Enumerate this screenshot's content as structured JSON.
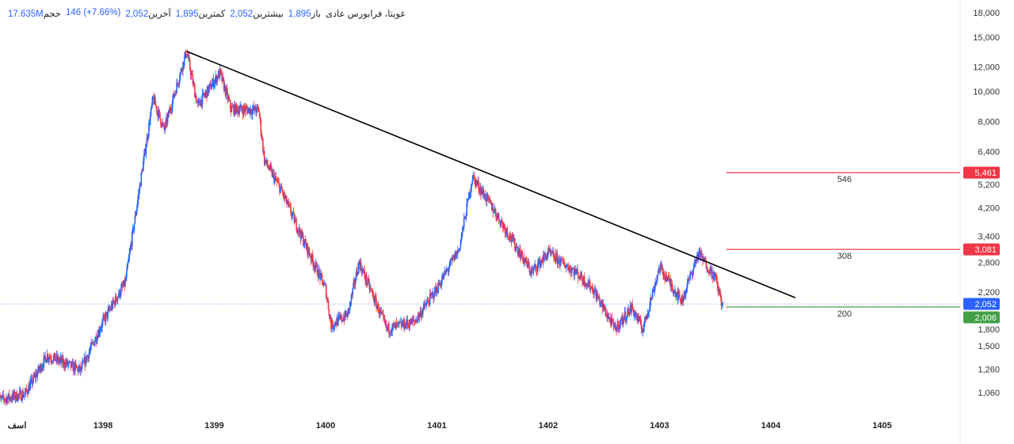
{
  "header": {
    "symbol": "غویتا، فرابورس عادی",
    "open_label": "باز",
    "open": "1,895",
    "high_label": "بیشترین",
    "high": "2,052",
    "low_label": "کمترین",
    "low": "1,895",
    "close_label": "آخرین",
    "close": "2,052",
    "change": "146 (+7.66%)",
    "volume_label": "حجم",
    "volume": "17.635M"
  },
  "chart_data": {
    "type": "candlestick",
    "y_scale": "log",
    "ylim": [
      900,
      18500
    ],
    "y_ticks": [
      "18,000",
      "15,000",
      "12,000",
      "10,000",
      "8,000",
      "6,400",
      "5,200",
      "4,200",
      "3,400",
      "2,800",
      "2,200",
      "1,800",
      "1,500",
      "1,260",
      "1,060"
    ],
    "y_tick_values": [
      18000,
      15000,
      12000,
      10000,
      8000,
      6400,
      5200,
      4200,
      3400,
      2800,
      2200,
      1800,
      1500,
      1260,
      1060
    ],
    "x_ticks": [
      "اسف",
      "1398",
      "1399",
      "1400",
      "1401",
      "1402",
      "1403",
      "1404",
      "1405"
    ],
    "x_tick_values": [
      1397.2,
      1398,
      1399,
      1400,
      1401,
      1402,
      1403,
      1404,
      1405
    ],
    "xlim": [
      1397.05,
      1406.2
    ],
    "price_path": [
      [
        1397.05,
        1000
      ],
      [
        1397.3,
        1050
      ],
      [
        1397.5,
        1400
      ],
      [
        1397.8,
        1250
      ],
      [
        1398.0,
        1800
      ],
      [
        1398.2,
        2400
      ],
      [
        1398.35,
        5500
      ],
      [
        1398.45,
        9500
      ],
      [
        1398.55,
        7500
      ],
      [
        1398.75,
        13500
      ],
      [
        1398.85,
        9000
      ],
      [
        1399.05,
        11500
      ],
      [
        1399.15,
        8800
      ],
      [
        1399.4,
        8700
      ],
      [
        1399.45,
        6000
      ],
      [
        1399.6,
        4800
      ],
      [
        1399.8,
        3300
      ],
      [
        1400.0,
        2300
      ],
      [
        1400.05,
        1750
      ],
      [
        1400.2,
        1900
      ],
      [
        1400.3,
        2800
      ],
      [
        1400.55,
        1700
      ],
      [
        1400.8,
        1800
      ],
      [
        1401.0,
        2300
      ],
      [
        1401.2,
        3100
      ],
      [
        1401.32,
        5300
      ],
      [
        1401.5,
        4200
      ],
      [
        1401.7,
        3200
      ],
      [
        1401.85,
        2600
      ],
      [
        1402.0,
        3000
      ],
      [
        1402.25,
        2600
      ],
      [
        1402.4,
        2300
      ],
      [
        1402.6,
        1700
      ],
      [
        1402.75,
        2000
      ],
      [
        1402.85,
        1700
      ],
      [
        1403.0,
        2700
      ],
      [
        1403.2,
        2100
      ],
      [
        1403.35,
        3000
      ],
      [
        1403.5,
        2500
      ],
      [
        1403.57,
        2006
      ]
    ],
    "trendline": [
      [
        1398.75,
        13500
      ],
      [
        1404.22,
        2150
      ]
    ],
    "levels": [
      {
        "value": 5461,
        "label": "5,461",
        "diff": "546",
        "color": "#f23645"
      },
      {
        "value": 3081,
        "label": "3,081",
        "diff": "308",
        "color": "#f23645"
      },
      {
        "value": 2006,
        "label": "2,006",
        "diff": "200",
        "color": "#43a047"
      }
    ],
    "last_price": {
      "value": 2052,
      "label": "2,052",
      "color": "#2962ff"
    },
    "level_start": 1403.6,
    "up_color": "#2962ff",
    "down_color": "#f23645"
  }
}
